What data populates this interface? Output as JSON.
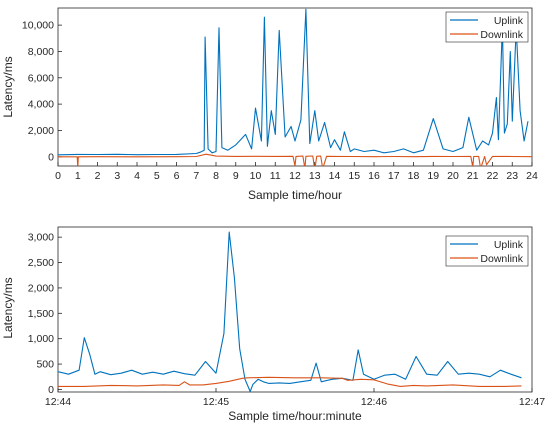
{
  "colors": {
    "uplink": "#0072BD",
    "downlink": "#D95319",
    "axis": "#262626"
  },
  "chart_data": [
    {
      "type": "line",
      "xlabel": "Sample time/hour",
      "ylabel": "Latency/ms",
      "xlim": [
        0,
        24
      ],
      "ylim": [
        -700,
        11300
      ],
      "x_ticks": [
        "0",
        "1",
        "2",
        "3",
        "4",
        "5",
        "6",
        "7",
        "8",
        "9",
        "10",
        "11",
        "12",
        "13",
        "14",
        "15",
        "16",
        "17",
        "18",
        "19",
        "20",
        "21",
        "22",
        "23",
        "24"
      ],
      "y_ticks": [
        "0",
        "2,000",
        "4,000",
        "6,000",
        "8,000",
        "10,000"
      ],
      "y_tick_values": [
        0,
        2000,
        4000,
        6000,
        8000,
        10000
      ],
      "legend": {
        "position": "top-right",
        "entries": [
          "Uplink",
          "Downlink"
        ]
      },
      "series": [
        {
          "name": "Uplink",
          "x": [
            0,
            1,
            2,
            3,
            4,
            5,
            6,
            7,
            7.2,
            7.4,
            7.45,
            7.6,
            7.8,
            8.0,
            8.15,
            8.3,
            8.6,
            9.0,
            9.5,
            9.8,
            10.0,
            10.3,
            10.45,
            10.6,
            10.8,
            11.0,
            11.2,
            11.5,
            11.8,
            12.0,
            12.3,
            12.55,
            12.75,
            13.0,
            13.2,
            13.5,
            13.8,
            14.0,
            14.3,
            14.5,
            14.8,
            15.0,
            15.5,
            16.0,
            16.5,
            17.0,
            17.5,
            18.0,
            18.5,
            19.0,
            19.5,
            20.0,
            20.5,
            20.8,
            21.2,
            21.5,
            21.8,
            22.0,
            22.2,
            22.3,
            22.5,
            22.6,
            22.75,
            22.9,
            23.0,
            23.2,
            23.4,
            23.6,
            23.8
          ],
          "values": [
            150,
            180,
            170,
            190,
            160,
            170,
            180,
            250,
            350,
            500,
            9100,
            600,
            300,
            400,
            9800,
            700,
            500,
            900,
            1700,
            600,
            3700,
            1200,
            10600,
            800,
            3500,
            1700,
            9600,
            1500,
            2300,
            1200,
            2800,
            11200,
            1000,
            3500,
            1200,
            2600,
            700,
            1300,
            500,
            1900,
            400,
            600,
            400,
            500,
            300,
            400,
            600,
            300,
            500,
            2900,
            600,
            400,
            700,
            3000,
            500,
            1200,
            900,
            1800,
            4500,
            1300,
            10000,
            1800,
            2500,
            8000,
            2700,
            9800,
            3500,
            1200,
            2700
          ]
        },
        {
          "name": "Downlink",
          "x": [
            0,
            0.97,
            1.0,
            1.03,
            2,
            4,
            6,
            7,
            7.5,
            8,
            9,
            10,
            11,
            11.9,
            12.0,
            12.05,
            12.4,
            12.5,
            12.55,
            12.9,
            13.0,
            13.1,
            13.3,
            13.4,
            13.6,
            14,
            15,
            16,
            17,
            18,
            19,
            20,
            20.9,
            21.0,
            21.05,
            21.3,
            21.4,
            21.6,
            21.7,
            22,
            23,
            24
          ],
          "values": [
            0,
            0,
            -800,
            0,
            10,
            0,
            10,
            20,
            200,
            50,
            30,
            40,
            30,
            40,
            -700,
            30,
            50,
            -900,
            40,
            60,
            -1000,
            40,
            50,
            -900,
            40,
            30,
            20,
            10,
            20,
            10,
            30,
            20,
            30,
            -800,
            20,
            30,
            -900,
            20,
            -600,
            30,
            20,
            10
          ]
        }
      ]
    },
    {
      "type": "line",
      "xlabel": "Sample time/hour:minute",
      "ylabel": "Latency/ms",
      "xlim": [
        0,
        180
      ],
      "ylim": [
        -50,
        3200
      ],
      "x_ticks": [
        "12:44",
        "12:45",
        "12:46",
        "12:47"
      ],
      "x_tick_values": [
        0,
        60,
        120,
        180
      ],
      "y_ticks": [
        "0",
        "500",
        "1,000",
        "1,500",
        "2,000",
        "2,500",
        "3,000"
      ],
      "y_tick_values": [
        0,
        500,
        1000,
        1500,
        2000,
        2500,
        3000
      ],
      "legend": {
        "position": "top-right",
        "entries": [
          "Uplink",
          "Downlink"
        ]
      },
      "series": [
        {
          "name": "Uplink",
          "x": [
            0,
            4,
            8,
            10,
            12,
            14,
            16,
            20,
            24,
            28,
            32,
            36,
            40,
            44,
            48,
            52,
            56,
            60,
            63,
            65,
            67,
            69,
            71,
            73,
            74,
            76,
            78,
            80,
            84,
            88,
            92,
            96,
            98,
            100,
            104,
            108,
            112,
            114,
            116,
            120,
            124,
            128,
            132,
            136,
            140,
            144,
            148,
            152,
            156,
            160,
            164,
            168,
            172,
            176
          ],
          "values": [
            350,
            300,
            380,
            1020,
            700,
            300,
            350,
            290,
            320,
            380,
            300,
            340,
            300,
            360,
            310,
            280,
            550,
            320,
            1100,
            3100,
            2200,
            800,
            200,
            -40,
            100,
            200,
            150,
            120,
            130,
            120,
            150,
            180,
            520,
            150,
            200,
            220,
            180,
            780,
            300,
            200,
            280,
            300,
            200,
            650,
            300,
            280,
            550,
            300,
            320,
            300,
            250,
            380,
            300,
            230
          ]
        },
        {
          "name": "Downlink",
          "x": [
            0,
            10,
            20,
            30,
            40,
            46,
            48,
            50,
            55,
            60,
            65,
            70,
            72,
            80,
            90,
            100,
            108,
            110,
            115,
            120,
            125,
            130,
            135,
            140,
            150,
            160,
            170,
            176
          ],
          "values": [
            60,
            60,
            80,
            70,
            90,
            80,
            150,
            90,
            90,
            120,
            160,
            220,
            230,
            240,
            230,
            230,
            220,
            180,
            200,
            190,
            110,
            60,
            80,
            70,
            90,
            60,
            60,
            70
          ]
        }
      ]
    }
  ]
}
